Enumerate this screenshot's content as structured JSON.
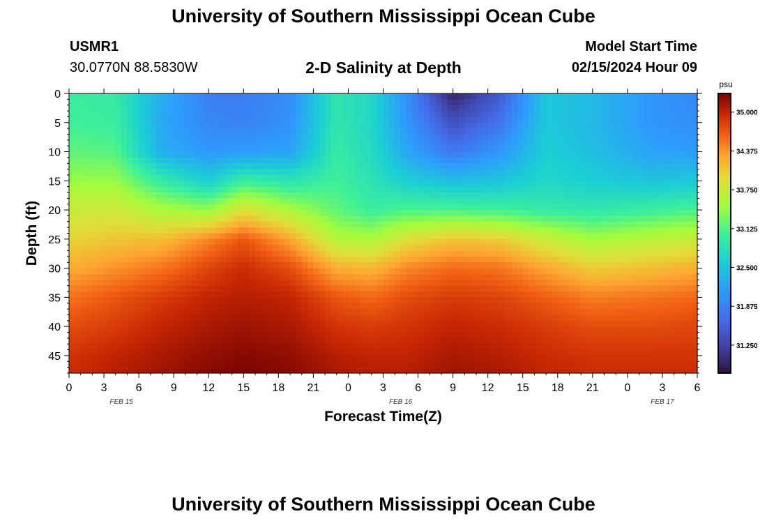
{
  "page": {
    "title": "University of Southern Mississippi Ocean Cube",
    "footer_title": "University of Southern Mississippi Ocean Cube",
    "station_id": "USMR1",
    "station_coords": "30.0770N  88.5830W",
    "plot_title": "2-D Salinity at Depth",
    "model_start_label": "Model Start Time",
    "model_start_value": "02/15/2024 Hour 09"
  },
  "chart_data": {
    "type": "heatmap",
    "title": "2-D Salinity at Depth",
    "xlabel": "Forecast Time(Z)",
    "ylabel": "Depth (ft)",
    "x_tick_labels": [
      "0",
      "3",
      "6",
      "9",
      "12",
      "15",
      "18",
      "21",
      "0",
      "3",
      "6",
      "9",
      "12",
      "15",
      "18",
      "21",
      "0",
      "3",
      "6"
    ],
    "x_range_hours": [
      0,
      54
    ],
    "date_labels": [
      {
        "label": "FEB 15",
        "at_hour": 4.5
      },
      {
        "label": "FEB 16",
        "at_hour": 28.5
      },
      {
        "label": "FEB 17",
        "at_hour": 51
      }
    ],
    "y_ticks": [
      0,
      5,
      10,
      15,
      20,
      25,
      30,
      35,
      40,
      45
    ],
    "y_range": [
      0,
      48
    ],
    "y_reversed": true,
    "colorbar": {
      "unit": "psu",
      "range": [
        30.8,
        35.3
      ],
      "ticks": [
        "35.000",
        "34.375",
        "33.750",
        "33.125",
        "32.500",
        "31.875",
        "31.250"
      ],
      "tick_values": [
        35.0,
        34.375,
        33.75,
        33.125,
        32.5,
        31.875,
        31.25
      ],
      "colormap": "turbo"
    },
    "profile_depths_ft": [
      0,
      5,
      10,
      15,
      20,
      25,
      30,
      35,
      40,
      45,
      48
    ],
    "profiles": [
      {
        "hour": 0,
        "values": [
          33.0,
          33.05,
          33.2,
          33.45,
          33.75,
          34.0,
          34.25,
          34.55,
          34.75,
          34.9,
          34.95
        ]
      },
      {
        "hour": 4,
        "values": [
          32.95,
          33.0,
          33.15,
          33.45,
          33.8,
          34.1,
          34.4,
          34.7,
          34.85,
          35.0,
          35.05
        ]
      },
      {
        "hour": 8,
        "values": [
          32.3,
          32.25,
          32.3,
          32.95,
          33.55,
          34.15,
          34.55,
          34.85,
          35.0,
          35.1,
          35.15
        ]
      },
      {
        "hour": 12,
        "values": [
          31.85,
          31.95,
          32.1,
          32.6,
          33.45,
          34.45,
          34.8,
          35.0,
          35.1,
          35.2,
          35.25
        ]
      },
      {
        "hour": 15,
        "values": [
          31.85,
          31.9,
          32.15,
          33.0,
          33.9,
          34.7,
          34.95,
          35.05,
          35.15,
          35.25,
          35.3
        ]
      },
      {
        "hour": 19,
        "values": [
          32.0,
          32.05,
          32.2,
          32.85,
          33.55,
          34.3,
          34.75,
          35.0,
          35.1,
          35.2,
          35.25
        ]
      },
      {
        "hour": 23,
        "values": [
          32.9,
          32.9,
          32.95,
          33.05,
          33.2,
          33.6,
          34.25,
          34.7,
          34.9,
          35.05,
          35.1
        ]
      },
      {
        "hour": 26,
        "values": [
          32.7,
          32.7,
          32.75,
          32.85,
          33.0,
          33.55,
          34.2,
          34.6,
          34.85,
          35.0,
          35.05
        ]
      },
      {
        "hour": 29,
        "values": [
          32.05,
          32.1,
          32.25,
          32.6,
          33.1,
          33.9,
          34.45,
          34.75,
          34.9,
          35.0,
          35.05
        ]
      },
      {
        "hour": 33,
        "values": [
          30.95,
          31.4,
          31.8,
          32.45,
          33.1,
          34.1,
          34.6,
          34.85,
          35.0,
          35.1,
          35.15
        ]
      },
      {
        "hour": 37,
        "values": [
          31.5,
          31.75,
          32.1,
          32.5,
          33.05,
          34.05,
          34.55,
          34.8,
          34.95,
          35.05,
          35.1
        ]
      },
      {
        "hour": 41,
        "values": [
          32.55,
          32.55,
          32.6,
          32.7,
          32.95,
          33.75,
          34.3,
          34.65,
          34.85,
          34.95,
          35.0
        ]
      },
      {
        "hour": 45,
        "values": [
          32.4,
          32.4,
          32.45,
          32.6,
          32.9,
          33.5,
          34.05,
          34.5,
          34.75,
          34.9,
          34.95
        ]
      },
      {
        "hour": 50,
        "values": [
          32.1,
          32.1,
          32.2,
          32.5,
          33.0,
          33.65,
          34.15,
          34.55,
          34.75,
          34.9,
          34.95
        ]
      },
      {
        "hour": 54,
        "values": [
          31.95,
          32.0,
          32.15,
          32.55,
          33.1,
          33.75,
          34.25,
          34.6,
          34.8,
          34.9,
          34.95
        ]
      }
    ]
  }
}
